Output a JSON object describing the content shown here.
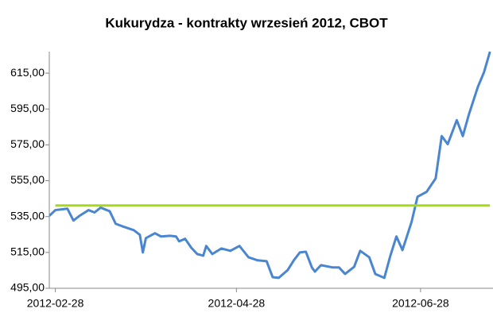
{
  "chart_data": {
    "type": "line",
    "title": "Kukurydza - kontrakty wrzesień 2012, CBOT",
    "series": [
      {
        "color": "#4a86d0",
        "x": [
          "2012-02-26",
          "2012-02-28",
          "2012-03-01",
          "2012-03-03",
          "2012-03-05",
          "2012-03-07",
          "2012-03-10",
          "2012-03-12",
          "2012-03-14",
          "2012-03-17",
          "2012-03-19",
          "2012-03-21",
          "2012-03-25",
          "2012-03-27",
          "2012-03-28",
          "2012-03-29",
          "2012-04-01",
          "2012-04-03",
          "2012-04-06",
          "2012-04-08",
          "2012-04-09",
          "2012-04-11",
          "2012-04-13",
          "2012-04-15",
          "2012-04-17",
          "2012-04-18",
          "2012-04-20",
          "2012-04-23",
          "2012-04-26",
          "2012-04-29",
          "2012-05-02",
          "2012-05-05",
          "2012-05-08",
          "2012-05-10",
          "2012-05-12",
          "2012-05-15",
          "2012-05-17",
          "2012-05-19",
          "2012-05-21",
          "2012-05-23",
          "2012-05-24",
          "2012-05-26",
          "2012-05-30",
          "2012-06-01",
          "2012-06-03",
          "2012-06-06",
          "2012-06-08",
          "2012-06-11",
          "2012-06-13",
          "2012-06-16",
          "2012-06-18",
          "2012-06-20",
          "2012-06-22",
          "2012-06-25",
          "2012-06-27",
          "2012-06-30",
          "2012-07-03",
          "2012-07-05",
          "2012-07-07",
          "2012-07-10",
          "2012-07-12",
          "2012-07-14",
          "2012-07-17",
          "2012-07-19",
          "2012-07-21"
        ],
        "values": [
          535.4,
          538.6,
          539,
          539.4,
          532.8,
          535.4,
          538.6,
          537.3,
          540,
          538,
          531,
          529.7,
          527.4,
          524.8,
          515,
          523,
          525.7,
          523.9,
          524.3,
          523.9,
          521.2,
          522.6,
          517.7,
          514.1,
          513.2,
          518.6,
          514.1,
          517.2,
          515.9,
          518.6,
          512.3,
          510.6,
          510.1,
          501.2,
          500.8,
          505.2,
          510.6,
          515,
          515.4,
          506.6,
          504.3,
          507.9,
          506.6,
          506.6,
          503,
          507,
          515.9,
          512.3,
          503,
          500.8,
          513.2,
          523.9,
          516.3,
          531.9,
          546.1,
          548.8,
          556.3,
          579.9,
          575.4,
          588.8,
          579.9,
          591.9,
          607.4,
          615.4,
          627
        ]
      },
      {
        "color": "#a8d81a",
        "x": [
          "2012-02-28",
          "2012-07-21"
        ],
        "values": [
          541.2,
          541.2
        ]
      }
    ],
    "xlim": [
      "2012-02-26",
      "2012-07-22"
    ],
    "xticks": [
      "2012-02-28",
      "2012-04-28",
      "2012-06-28"
    ],
    "ylim": [
      495,
      627
    ],
    "yticks": [
      {
        "value": 495,
        "label": "495,00"
      },
      {
        "value": 515,
        "label": "515,00"
      },
      {
        "value": 535,
        "label": "535,00"
      },
      {
        "value": 555,
        "label": "555,00"
      },
      {
        "value": 575,
        "label": "575,00"
      },
      {
        "value": 595,
        "label": "595,00"
      },
      {
        "value": 615,
        "label": "615,00"
      }
    ],
    "grid": false
  }
}
